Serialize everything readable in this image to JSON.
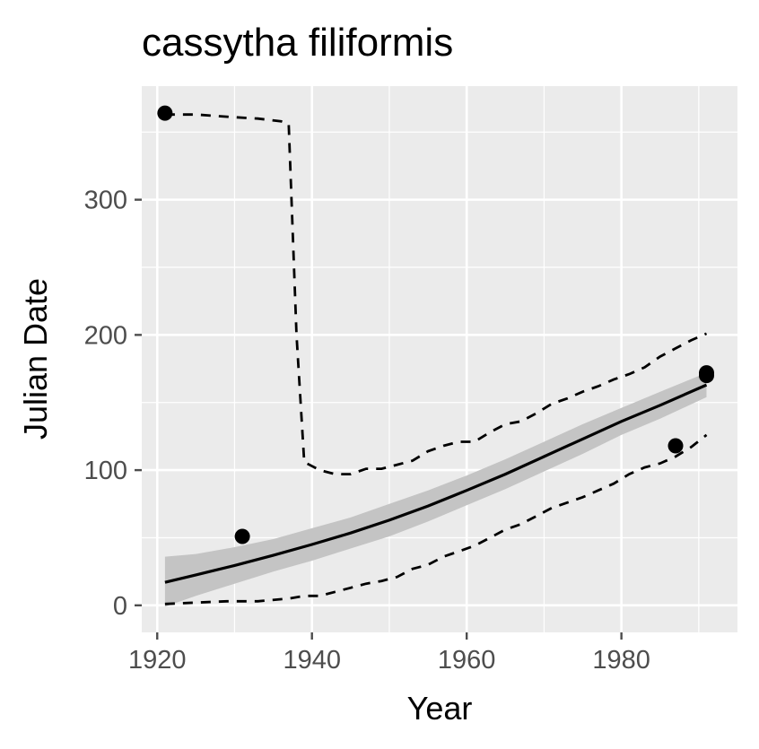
{
  "chart_data": {
    "type": "line",
    "title": "cassytha filiformis",
    "xlabel": "Year",
    "ylabel": "Julian Date",
    "xlim": [
      1918,
      1995
    ],
    "ylim": [
      -20,
      384
    ],
    "x_ticks": [
      1920,
      1940,
      1960,
      1980
    ],
    "y_ticks": [
      0,
      100,
      200,
      300
    ],
    "grid": true,
    "legend": "none",
    "colors": {
      "panel": "#ebebeb",
      "grid": "#ffffff",
      "band": "#c4c4c4",
      "line": "#000000",
      "tick": "#4d4d4d"
    },
    "points": [
      {
        "x": 1921,
        "y": 364
      },
      {
        "x": 1931,
        "y": 51
      },
      {
        "x": 1987,
        "y": 118
      },
      {
        "x": 1991,
        "y": 170
      },
      {
        "x": 1991,
        "y": 172
      }
    ],
    "fit_line": {
      "x": [
        1921,
        1925,
        1930,
        1935,
        1940,
        1945,
        1950,
        1955,
        1960,
        1965,
        1970,
        1975,
        1980,
        1985,
        1991
      ],
      "y": [
        17,
        22.5,
        29.5,
        37,
        45,
        53.5,
        63,
        73.5,
        85,
        97,
        110,
        123,
        136,
        148,
        163
      ]
    },
    "confidence_band": {
      "x": [
        1921,
        1925,
        1930,
        1935,
        1940,
        1945,
        1950,
        1955,
        1960,
        1965,
        1970,
        1975,
        1980,
        1985,
        1991
      ],
      "lower": [
        -1,
        7,
        16,
        25,
        33,
        42,
        51,
        62,
        74,
        86,
        99,
        112,
        126,
        138,
        154
      ],
      "upper": [
        36,
        38,
        43,
        49,
        57,
        65,
        75,
        85,
        96,
        108,
        121,
        134,
        146,
        158,
        172
      ]
    },
    "upper_quantile": {
      "x": [
        1921,
        1925,
        1930,
        1933,
        1936,
        1937,
        1938,
        1939,
        1941,
        1943,
        1945,
        1947,
        1949,
        1951,
        1953,
        1955,
        1957,
        1959,
        1961,
        1963,
        1965,
        1967,
        1969,
        1971,
        1973,
        1975,
        1977,
        1979,
        1981,
        1983,
        1985,
        1987,
        1989,
        1991
      ],
      "y": [
        363,
        363,
        361,
        360,
        358,
        356,
        200,
        106,
        100,
        97,
        97,
        101,
        101,
        104,
        107,
        114,
        118,
        121,
        121,
        128,
        134,
        136,
        142,
        149,
        153,
        158,
        162,
        167,
        171,
        176,
        184,
        190,
        196,
        201
      ]
    },
    "lower_quantile": {
      "x": [
        1921,
        1925,
        1929,
        1933,
        1937,
        1939,
        1941,
        1943,
        1945,
        1947,
        1949,
        1951,
        1953,
        1955,
        1957,
        1959,
        1961,
        1963,
        1965,
        1967,
        1969,
        1971,
        1973,
        1975,
        1977,
        1979,
        1981,
        1983,
        1985,
        1987,
        1989,
        1991
      ],
      "y": [
        1,
        2,
        3,
        3,
        5,
        7,
        7,
        10,
        13,
        16,
        18,
        21,
        27,
        30,
        36,
        40,
        44,
        50,
        56,
        60,
        66,
        72,
        76,
        80,
        85,
        90,
        97,
        102,
        105,
        110,
        117,
        126
      ]
    }
  }
}
